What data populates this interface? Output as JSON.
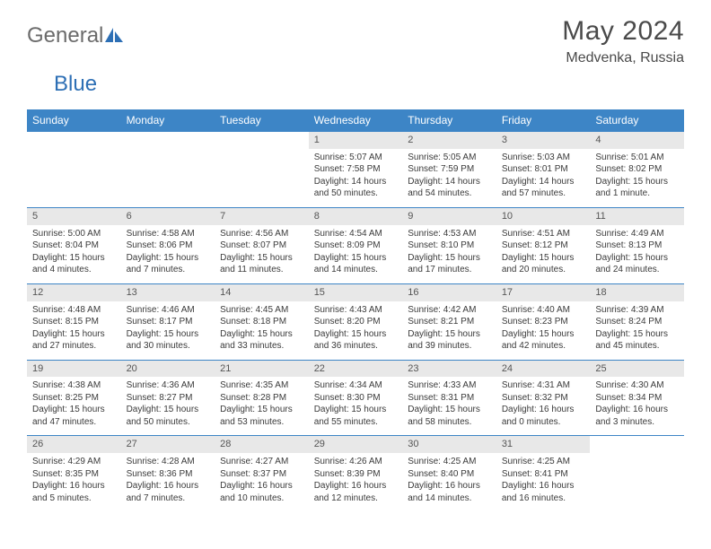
{
  "logo": {
    "part1": "General",
    "part2": "Blue"
  },
  "title": "May 2024",
  "location": "Medvenka, Russia",
  "colors": {
    "header_bg": "#3d85c6",
    "header_text": "#ffffff",
    "daynum_bg": "#e8e8e8",
    "text": "#3a3a3a",
    "logo_gray": "#6b6b6b",
    "logo_blue": "#2d6fb5"
  },
  "typography": {
    "title_fontsize": 30,
    "location_fontsize": 16,
    "dayhead_fontsize": 12,
    "cell_fontsize": 10
  },
  "weekdays": [
    "Sunday",
    "Monday",
    "Tuesday",
    "Wednesday",
    "Thursday",
    "Friday",
    "Saturday"
  ],
  "weeks": [
    [
      null,
      null,
      null,
      {
        "n": "1",
        "sr": "Sunrise: 5:07 AM",
        "ss": "Sunset: 7:58 PM",
        "dl": "Daylight: 14 hours and 50 minutes."
      },
      {
        "n": "2",
        "sr": "Sunrise: 5:05 AM",
        "ss": "Sunset: 7:59 PM",
        "dl": "Daylight: 14 hours and 54 minutes."
      },
      {
        "n": "3",
        "sr": "Sunrise: 5:03 AM",
        "ss": "Sunset: 8:01 PM",
        "dl": "Daylight: 14 hours and 57 minutes."
      },
      {
        "n": "4",
        "sr": "Sunrise: 5:01 AM",
        "ss": "Sunset: 8:02 PM",
        "dl": "Daylight: 15 hours and 1 minute."
      }
    ],
    [
      {
        "n": "5",
        "sr": "Sunrise: 5:00 AM",
        "ss": "Sunset: 8:04 PM",
        "dl": "Daylight: 15 hours and 4 minutes."
      },
      {
        "n": "6",
        "sr": "Sunrise: 4:58 AM",
        "ss": "Sunset: 8:06 PM",
        "dl": "Daylight: 15 hours and 7 minutes."
      },
      {
        "n": "7",
        "sr": "Sunrise: 4:56 AM",
        "ss": "Sunset: 8:07 PM",
        "dl": "Daylight: 15 hours and 11 minutes."
      },
      {
        "n": "8",
        "sr": "Sunrise: 4:54 AM",
        "ss": "Sunset: 8:09 PM",
        "dl": "Daylight: 15 hours and 14 minutes."
      },
      {
        "n": "9",
        "sr": "Sunrise: 4:53 AM",
        "ss": "Sunset: 8:10 PM",
        "dl": "Daylight: 15 hours and 17 minutes."
      },
      {
        "n": "10",
        "sr": "Sunrise: 4:51 AM",
        "ss": "Sunset: 8:12 PM",
        "dl": "Daylight: 15 hours and 20 minutes."
      },
      {
        "n": "11",
        "sr": "Sunrise: 4:49 AM",
        "ss": "Sunset: 8:13 PM",
        "dl": "Daylight: 15 hours and 24 minutes."
      }
    ],
    [
      {
        "n": "12",
        "sr": "Sunrise: 4:48 AM",
        "ss": "Sunset: 8:15 PM",
        "dl": "Daylight: 15 hours and 27 minutes."
      },
      {
        "n": "13",
        "sr": "Sunrise: 4:46 AM",
        "ss": "Sunset: 8:17 PM",
        "dl": "Daylight: 15 hours and 30 minutes."
      },
      {
        "n": "14",
        "sr": "Sunrise: 4:45 AM",
        "ss": "Sunset: 8:18 PM",
        "dl": "Daylight: 15 hours and 33 minutes."
      },
      {
        "n": "15",
        "sr": "Sunrise: 4:43 AM",
        "ss": "Sunset: 8:20 PM",
        "dl": "Daylight: 15 hours and 36 minutes."
      },
      {
        "n": "16",
        "sr": "Sunrise: 4:42 AM",
        "ss": "Sunset: 8:21 PM",
        "dl": "Daylight: 15 hours and 39 minutes."
      },
      {
        "n": "17",
        "sr": "Sunrise: 4:40 AM",
        "ss": "Sunset: 8:23 PM",
        "dl": "Daylight: 15 hours and 42 minutes."
      },
      {
        "n": "18",
        "sr": "Sunrise: 4:39 AM",
        "ss": "Sunset: 8:24 PM",
        "dl": "Daylight: 15 hours and 45 minutes."
      }
    ],
    [
      {
        "n": "19",
        "sr": "Sunrise: 4:38 AM",
        "ss": "Sunset: 8:25 PM",
        "dl": "Daylight: 15 hours and 47 minutes."
      },
      {
        "n": "20",
        "sr": "Sunrise: 4:36 AM",
        "ss": "Sunset: 8:27 PM",
        "dl": "Daylight: 15 hours and 50 minutes."
      },
      {
        "n": "21",
        "sr": "Sunrise: 4:35 AM",
        "ss": "Sunset: 8:28 PM",
        "dl": "Daylight: 15 hours and 53 minutes."
      },
      {
        "n": "22",
        "sr": "Sunrise: 4:34 AM",
        "ss": "Sunset: 8:30 PM",
        "dl": "Daylight: 15 hours and 55 minutes."
      },
      {
        "n": "23",
        "sr": "Sunrise: 4:33 AM",
        "ss": "Sunset: 8:31 PM",
        "dl": "Daylight: 15 hours and 58 minutes."
      },
      {
        "n": "24",
        "sr": "Sunrise: 4:31 AM",
        "ss": "Sunset: 8:32 PM",
        "dl": "Daylight: 16 hours and 0 minutes."
      },
      {
        "n": "25",
        "sr": "Sunrise: 4:30 AM",
        "ss": "Sunset: 8:34 PM",
        "dl": "Daylight: 16 hours and 3 minutes."
      }
    ],
    [
      {
        "n": "26",
        "sr": "Sunrise: 4:29 AM",
        "ss": "Sunset: 8:35 PM",
        "dl": "Daylight: 16 hours and 5 minutes."
      },
      {
        "n": "27",
        "sr": "Sunrise: 4:28 AM",
        "ss": "Sunset: 8:36 PM",
        "dl": "Daylight: 16 hours and 7 minutes."
      },
      {
        "n": "28",
        "sr": "Sunrise: 4:27 AM",
        "ss": "Sunset: 8:37 PM",
        "dl": "Daylight: 16 hours and 10 minutes."
      },
      {
        "n": "29",
        "sr": "Sunrise: 4:26 AM",
        "ss": "Sunset: 8:39 PM",
        "dl": "Daylight: 16 hours and 12 minutes."
      },
      {
        "n": "30",
        "sr": "Sunrise: 4:25 AM",
        "ss": "Sunset: 8:40 PM",
        "dl": "Daylight: 16 hours and 14 minutes."
      },
      {
        "n": "31",
        "sr": "Sunrise: 4:25 AM",
        "ss": "Sunset: 8:41 PM",
        "dl": "Daylight: 16 hours and 16 minutes."
      },
      null
    ]
  ]
}
